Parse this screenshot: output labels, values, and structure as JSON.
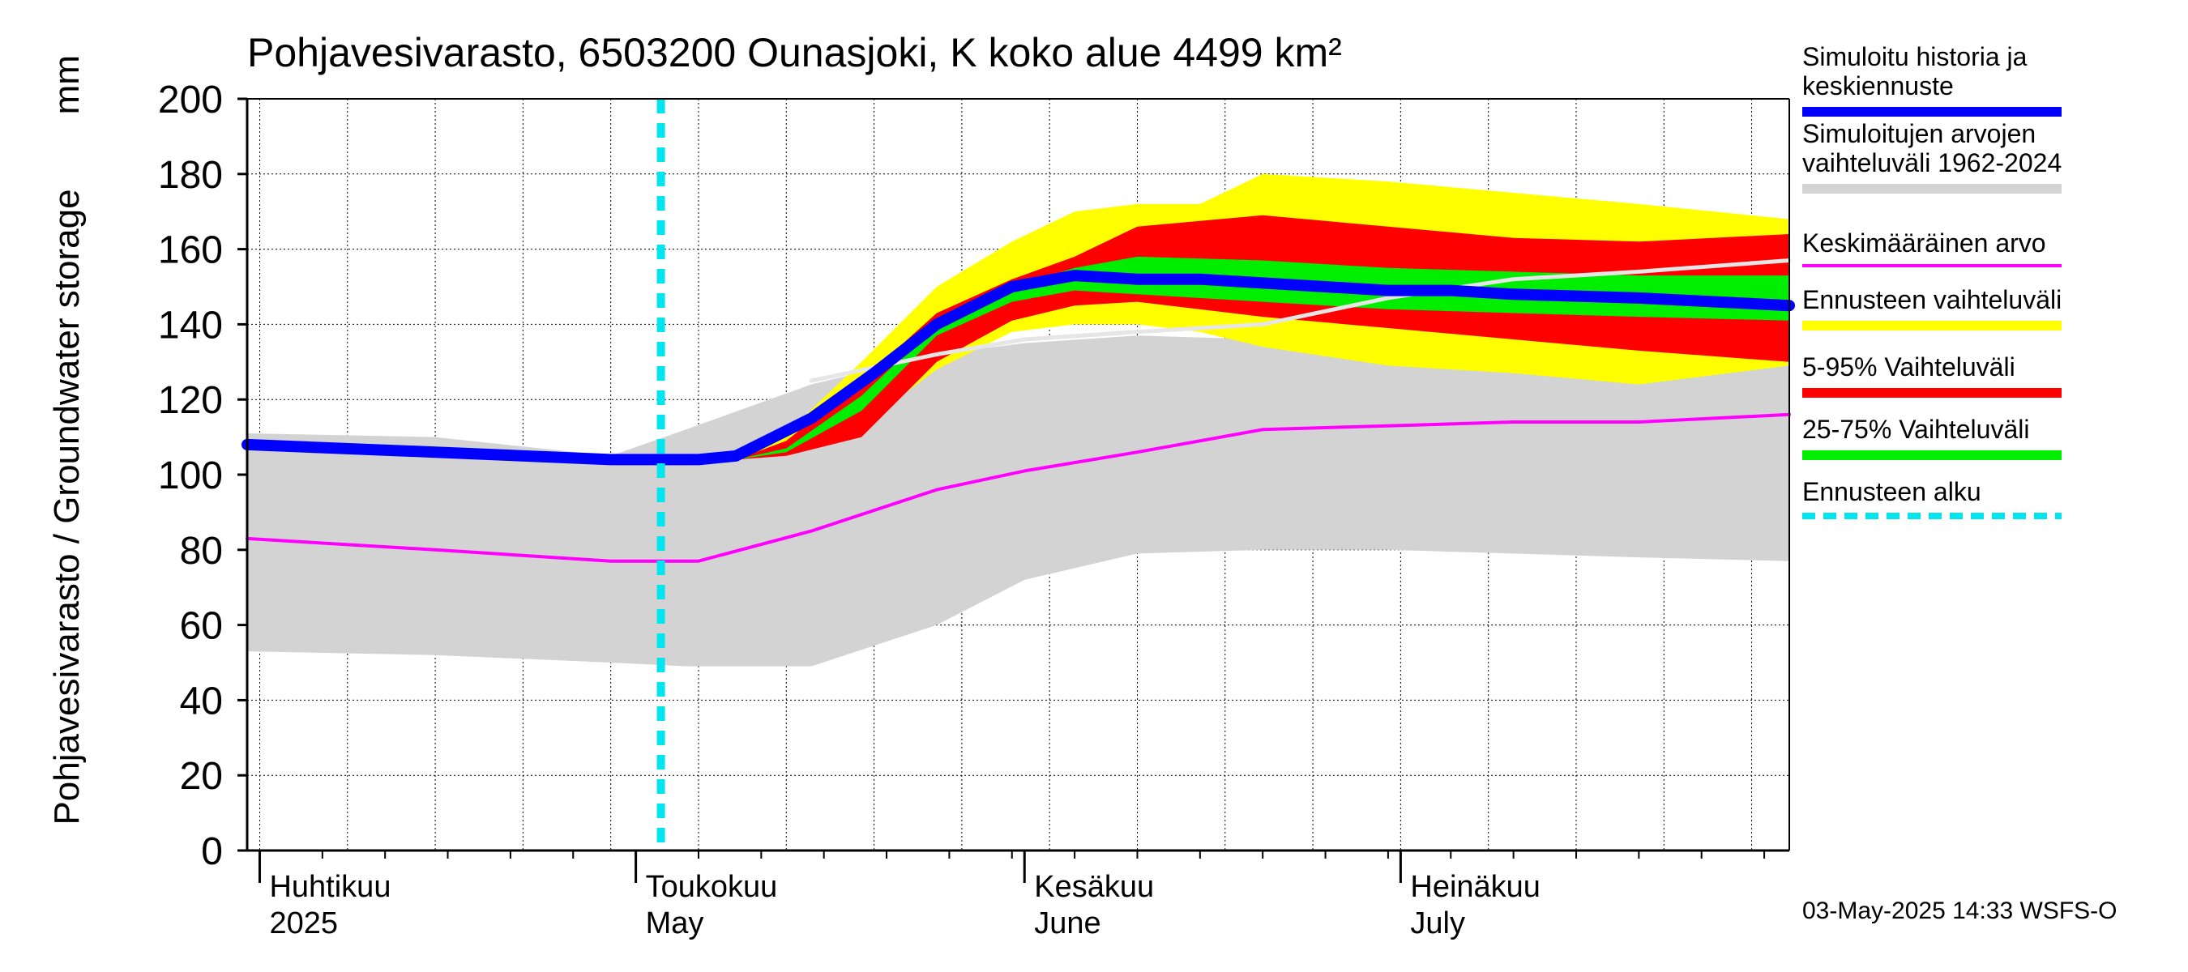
{
  "chart_data": {
    "type": "area",
    "title": "Pohjavesivarasto, 6503200 Ounasjoki, K koko alue 4499 km²",
    "ylabel": "Pohjavesivarasto / Groundwater storage",
    "yunit": "mm",
    "ylim": [
      0,
      200
    ],
    "yticks": [
      0,
      20,
      40,
      60,
      80,
      100,
      120,
      140,
      160,
      180,
      200
    ],
    "xlim": [
      "2025-03-31",
      "2025-08-01"
    ],
    "grid": true,
    "legend_position": "right",
    "month_labels": [
      {
        "fi": "Huhtikuu",
        "en": "2025",
        "date": "2025-04-01"
      },
      {
        "fi": "Toukokuu",
        "en": "May",
        "date": "2025-05-01"
      },
      {
        "fi": "Kesäkuu",
        "en": "June",
        "date": "2025-06-01"
      },
      {
        "fi": "Heinäkuu",
        "en": "July",
        "date": "2025-07-01"
      }
    ],
    "forecast_start": "2025-05-03",
    "series": [
      {
        "name": "Simuloitujen arvojen vaihteluväli 1962-2024",
        "kind": "band",
        "color": "#d3d3d3",
        "x": [
          "2025-03-31",
          "2025-04-15",
          "2025-04-29",
          "2025-05-05",
          "2025-05-15",
          "2025-05-25",
          "2025-06-01",
          "2025-06-10",
          "2025-06-20",
          "2025-06-30",
          "2025-07-10",
          "2025-07-20",
          "2025-08-01"
        ],
        "lower": [
          53,
          52,
          50,
          49,
          49,
          60,
          72,
          79,
          80,
          80,
          79,
          78,
          77
        ],
        "upper": [
          111,
          110,
          105,
          112,
          124,
          132,
          135,
          137,
          136,
          133,
          130,
          129,
          130
        ]
      },
      {
        "name": "Ennusteen vaihteluväli",
        "kind": "band",
        "color": "#ffff00",
        "x": [
          "2025-05-03",
          "2025-05-09",
          "2025-05-13",
          "2025-05-19",
          "2025-05-25",
          "2025-05-31",
          "2025-06-05",
          "2025-06-10",
          "2025-06-15",
          "2025-06-20",
          "2025-06-30",
          "2025-07-10",
          "2025-07-20",
          "2025-08-01"
        ],
        "lower": [
          104,
          104,
          106,
          113,
          128,
          138,
          140,
          140,
          138,
          134,
          129,
          127,
          124,
          129
        ],
        "upper": [
          104,
          104,
          111,
          130,
          150,
          162,
          170,
          172,
          172,
          180,
          178,
          175,
          172,
          168
        ]
      },
      {
        "name": "5-95% Vaihteluväli",
        "kind": "band",
        "color": "#ff0000",
        "x": [
          "2025-05-03",
          "2025-05-09",
          "2025-05-13",
          "2025-05-19",
          "2025-05-25",
          "2025-05-31",
          "2025-06-05",
          "2025-06-10",
          "2025-06-20",
          "2025-06-30",
          "2025-07-10",
          "2025-07-20",
          "2025-08-01"
        ],
        "lower": [
          104,
          104,
          105,
          110,
          130,
          141,
          145,
          146,
          142,
          139,
          136,
          133,
          130
        ],
        "upper": [
          104,
          104,
          109,
          125,
          143,
          152,
          158,
          166,
          169,
          166,
          163,
          162,
          164
        ]
      },
      {
        "name": "25-75% Vaihteluväli",
        "kind": "band",
        "color": "#00ee00",
        "x": [
          "2025-05-03",
          "2025-05-09",
          "2025-05-13",
          "2025-05-19",
          "2025-05-25",
          "2025-05-31",
          "2025-06-05",
          "2025-06-10",
          "2025-06-20",
          "2025-06-30",
          "2025-07-10",
          "2025-07-20",
          "2025-08-01"
        ],
        "lower": [
          104,
          104,
          106,
          117,
          137,
          146,
          149,
          148,
          146,
          144,
          143,
          142,
          141
        ],
        "upper": [
          104,
          104,
          107,
          121,
          140,
          150,
          155,
          158,
          157,
          155,
          154,
          153,
          153
        ]
      },
      {
        "name": "Keskimääräinen arvo",
        "kind": "line",
        "color": "#ff00ff",
        "x": [
          "2025-03-31",
          "2025-04-15",
          "2025-04-29",
          "2025-05-06",
          "2025-05-15",
          "2025-05-25",
          "2025-06-01",
          "2025-06-10",
          "2025-06-20",
          "2025-06-30",
          "2025-07-10",
          "2025-07-20",
          "2025-08-01"
        ],
        "y": [
          83,
          80,
          77,
          77,
          85,
          96,
          101,
          106,
          112,
          113,
          114,
          114,
          116
        ]
      },
      {
        "name": "Simuloitu historia ja keskiennuste",
        "kind": "line",
        "color": "#0000ff",
        "x": [
          "2025-03-31",
          "2025-04-15",
          "2025-04-29",
          "2025-05-06",
          "2025-05-09",
          "2025-05-15",
          "2025-05-20",
          "2025-05-25",
          "2025-05-31",
          "2025-06-05",
          "2025-06-10",
          "2025-06-15",
          "2025-06-20",
          "2025-06-30",
          "2025-07-05",
          "2025-07-10",
          "2025-07-20",
          "2025-08-01"
        ],
        "y": [
          108,
          106,
          104,
          104,
          105,
          115,
          127,
          140,
          150,
          153,
          152,
          152,
          151,
          149,
          149,
          148,
          147,
          145
        ]
      },
      {
        "name": "Simuloitu historia (light)",
        "kind": "line",
        "color": "#e6e6e6",
        "x": [
          "2025-05-15",
          "2025-05-25",
          "2025-06-01",
          "2025-06-10",
          "2025-06-20",
          "2025-06-30",
          "2025-07-10",
          "2025-07-20",
          "2025-08-01"
        ],
        "y": [
          125,
          132,
          136,
          138,
          140,
          147,
          152,
          154,
          157
        ]
      }
    ]
  },
  "legend": [
    {
      "label": "Simuloitu historia ja\nkeskiennuste",
      "color": "#0000ff",
      "style": "solid",
      "thickness": 12
    },
    {
      "label": "Simuloitujen arvojen\nvaihteluväli 1962-2024",
      "color": "#d3d3d3",
      "style": "solid",
      "thickness": 12
    },
    {
      "label": "Keskimääräinen arvo",
      "color": "#ff00ff",
      "style": "solid",
      "thickness": 4
    },
    {
      "label": "Ennusteen vaihteluväli",
      "color": "#ffff00",
      "style": "solid",
      "thickness": 12
    },
    {
      "label": "5-95% Vaihteluväli",
      "color": "#ff0000",
      "style": "solid",
      "thickness": 12
    },
    {
      "label": "25-75% Vaihteluväli",
      "color": "#00ee00",
      "style": "solid",
      "thickness": 12
    },
    {
      "label": "Ennusteen alku",
      "color": "#00e5ee",
      "style": "dashed",
      "thickness": 8
    }
  ],
  "footer": "03-May-2025 14:33 WSFS-O"
}
